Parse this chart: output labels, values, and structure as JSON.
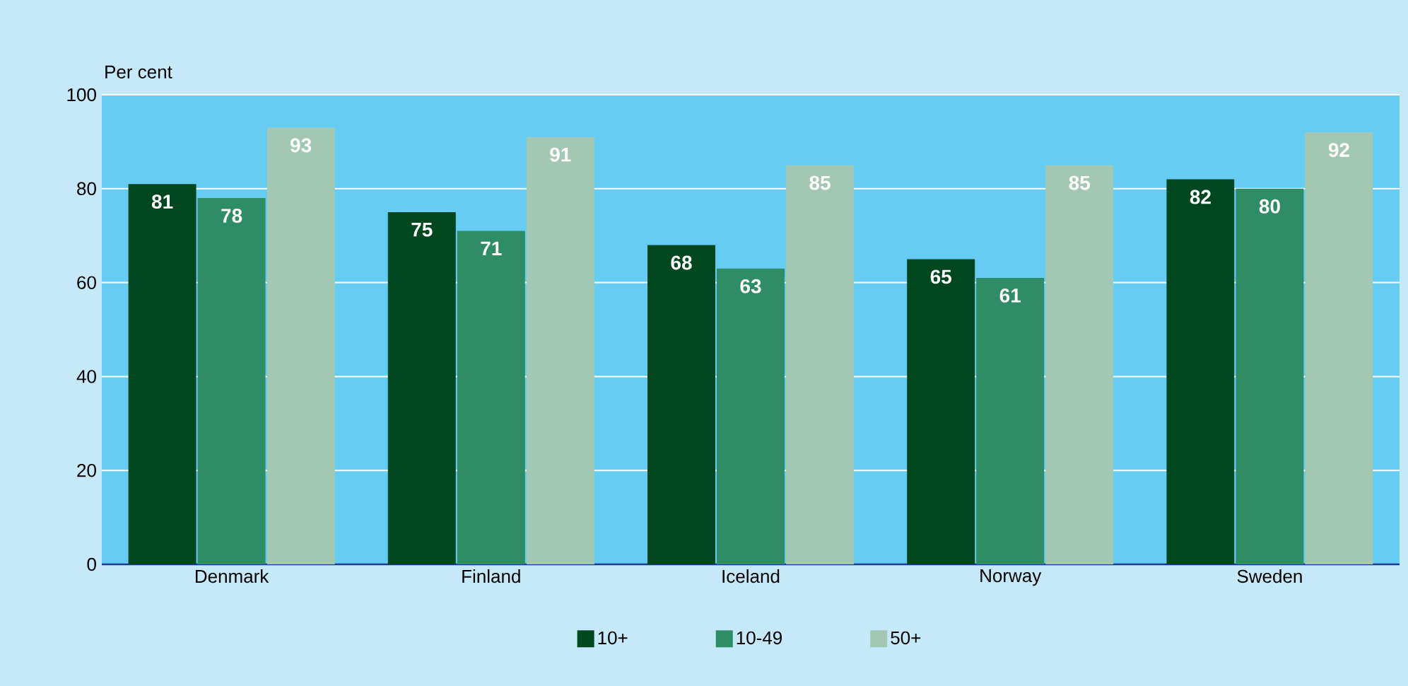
{
  "chart_data": {
    "type": "bar",
    "ylabel": "Per cent",
    "categories": [
      "Denmark",
      "Finland",
      "Iceland",
      "Norway",
      "Sweden"
    ],
    "series": [
      {
        "name": "10+",
        "color": "#00471f",
        "values": [
          81,
          75,
          68,
          65,
          82
        ]
      },
      {
        "name": "10-49",
        "color": "#2e8c66",
        "values": [
          78,
          71,
          63,
          61,
          80
        ]
      },
      {
        "name": "50+",
        "color": "#a2c8b4",
        "values": [
          93,
          91,
          85,
          85,
          92
        ]
      }
    ],
    "ylim": [
      0,
      100
    ],
    "yticks": [
      0,
      20,
      40,
      60,
      80,
      100
    ],
    "grid": "y",
    "legend": "bottom",
    "data_labels": true
  }
}
